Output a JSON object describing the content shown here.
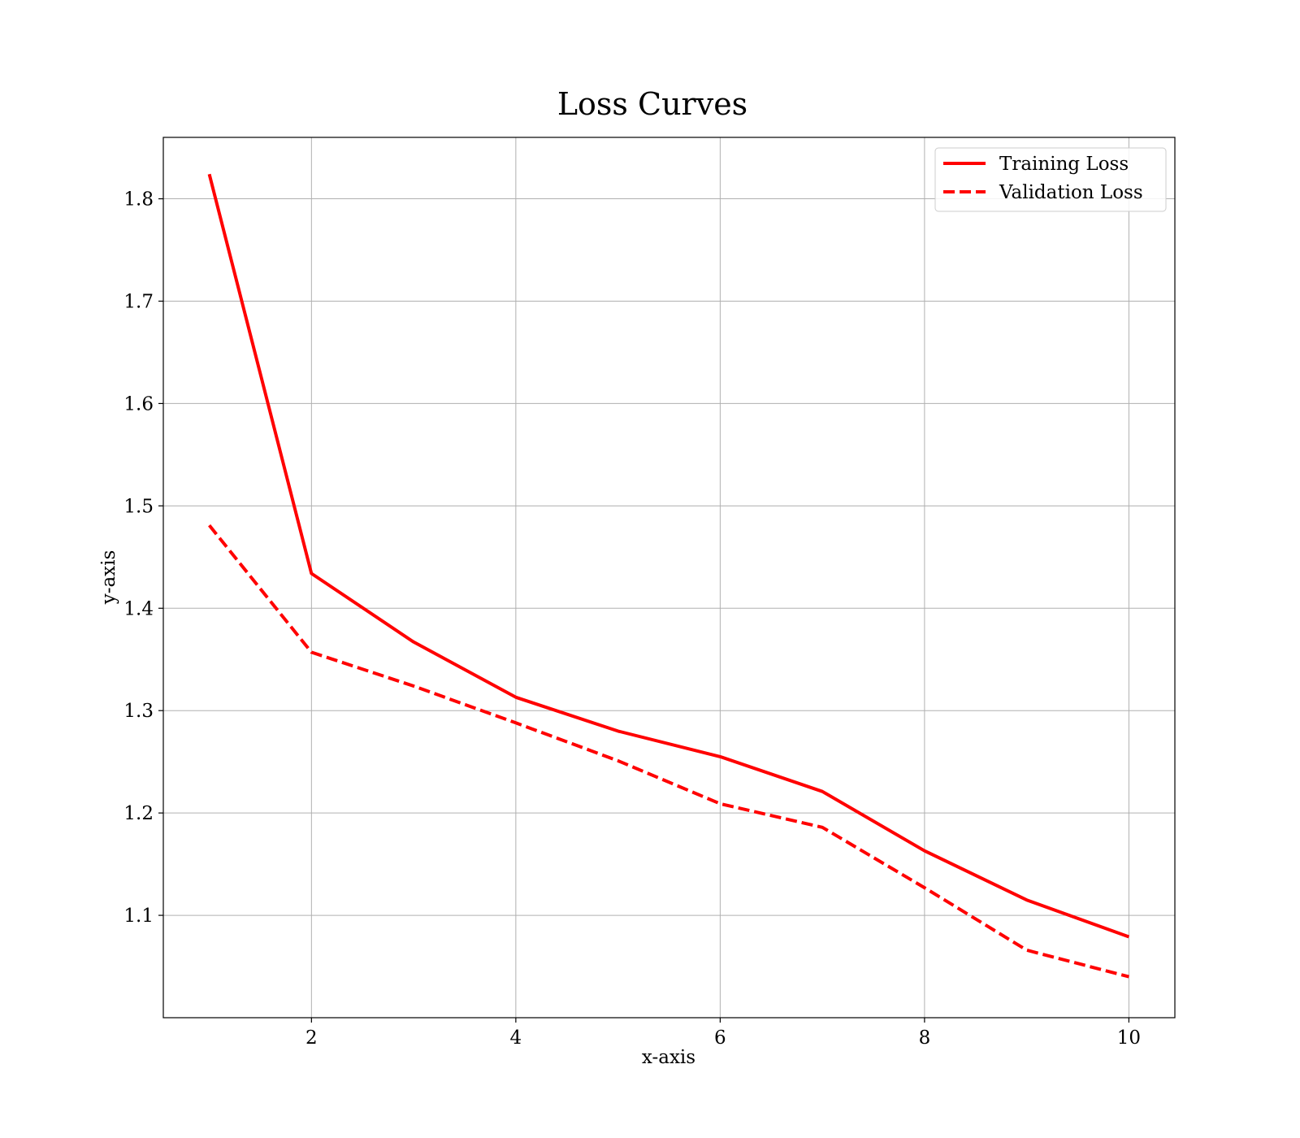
{
  "chart_data": {
    "type": "line",
    "title": "Loss Curves",
    "xlabel": "x-axis",
    "ylabel": "y-axis",
    "x": [
      1,
      2,
      3,
      4,
      5,
      6,
      7,
      8,
      9,
      10
    ],
    "xlim": [
      0.55,
      10.45
    ],
    "ylim": [
      1.0,
      1.86
    ],
    "xticks": [
      2,
      4,
      6,
      8,
      10
    ],
    "yticks": [
      1.1,
      1.2,
      1.3,
      1.4,
      1.5,
      1.6,
      1.7,
      1.8
    ],
    "grid": true,
    "legend_position": "top-right",
    "series": [
      {
        "name": "Training Loss",
        "color": "#ff0000",
        "style": "solid",
        "values": [
          1.824,
          1.434,
          1.367,
          1.313,
          1.28,
          1.255,
          1.221,
          1.163,
          1.115,
          1.079
        ]
      },
      {
        "name": "Validation Loss",
        "color": "#ff0000",
        "style": "dashed",
        "values": [
          1.481,
          1.357,
          1.324,
          1.288,
          1.251,
          1.209,
          1.186,
          1.127,
          1.066,
          1.04
        ]
      }
    ]
  }
}
